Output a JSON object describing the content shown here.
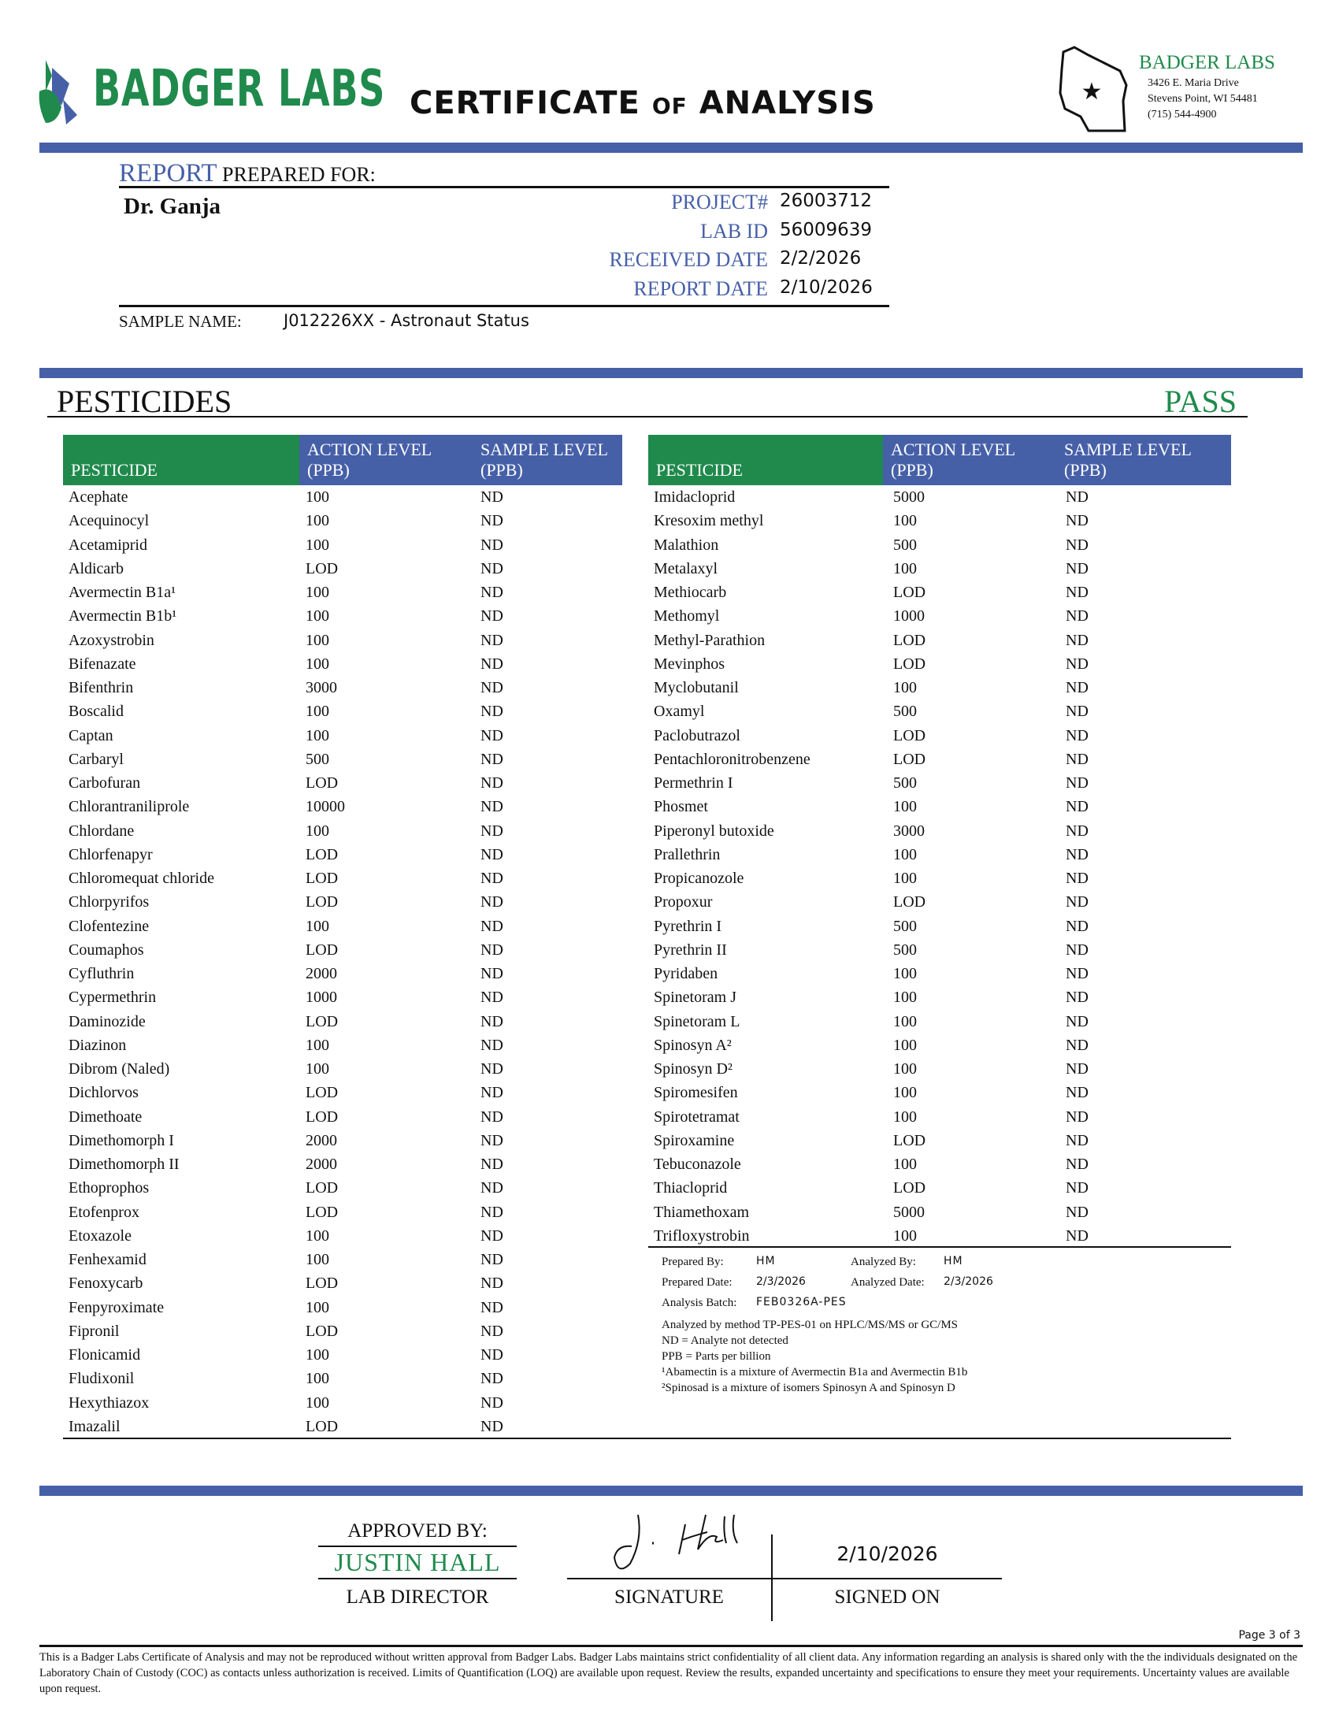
{
  "header": {
    "logo_text": "BADGER LABS",
    "title_part1": "CERTIFICATE",
    "title_of": "OF",
    "title_part2": "ANALYSIS",
    "lab_name": "BADGER LABS",
    "address1": "3426 E. Maria Drive",
    "address2": "Stevens Point, WI 54481",
    "phone": "(715) 544-4900"
  },
  "report": {
    "report_word": "REPORT",
    "prepared_for_label": "PREPARED FOR:",
    "client": "Dr. Ganja",
    "fields": [
      {
        "label": "PROJECT#",
        "value": "26003712"
      },
      {
        "label": "LAB ID",
        "value": "56009639"
      },
      {
        "label": "RECEIVED DATE",
        "value": "2/2/2026"
      },
      {
        "label": "REPORT DATE",
        "value": "2/10/2026"
      }
    ],
    "sample_name_label": "SAMPLE NAME:",
    "sample_name": "J012226XX - Astronaut Status"
  },
  "section": {
    "title": "PESTICIDES",
    "result": "PASS"
  },
  "table": {
    "headers": [
      "PESTICIDE",
      "ACTION LEVEL (PPB)",
      "SAMPLE LEVEL (PPB)"
    ],
    "left": [
      [
        "Acephate",
        "100",
        "ND"
      ],
      [
        "Acequinocyl",
        "100",
        "ND"
      ],
      [
        "Acetamiprid",
        "100",
        "ND"
      ],
      [
        "Aldicarb",
        "LOD",
        "ND"
      ],
      [
        "Avermectin B1a¹",
        "100",
        "ND"
      ],
      [
        "Avermectin B1b¹",
        "100",
        "ND"
      ],
      [
        "Azoxystrobin",
        "100",
        "ND"
      ],
      [
        "Bifenazate",
        "100",
        "ND"
      ],
      [
        "Bifenthrin",
        "3000",
        "ND"
      ],
      [
        "Boscalid",
        "100",
        "ND"
      ],
      [
        "Captan",
        "100",
        "ND"
      ],
      [
        "Carbaryl",
        "500",
        "ND"
      ],
      [
        "Carbofuran",
        "LOD",
        "ND"
      ],
      [
        "Chlorantraniliprole",
        "10000",
        "ND"
      ],
      [
        "Chlordane",
        "100",
        "ND"
      ],
      [
        "Chlorfenapyr",
        "LOD",
        "ND"
      ],
      [
        "Chloromequat chloride",
        "LOD",
        "ND"
      ],
      [
        "Chlorpyrifos",
        "LOD",
        "ND"
      ],
      [
        "Clofentezine",
        "100",
        "ND"
      ],
      [
        "Coumaphos",
        "LOD",
        "ND"
      ],
      [
        "Cyfluthrin",
        "2000",
        "ND"
      ],
      [
        "Cypermethrin",
        "1000",
        "ND"
      ],
      [
        "Daminozide",
        "LOD",
        "ND"
      ],
      [
        "Diazinon",
        "100",
        "ND"
      ],
      [
        "Dibrom (Naled)",
        "100",
        "ND"
      ],
      [
        "Dichlorvos",
        "LOD",
        "ND"
      ],
      [
        "Dimethoate",
        "LOD",
        "ND"
      ],
      [
        "Dimethomorph I",
        "2000",
        "ND"
      ],
      [
        "Dimethomorph II",
        "2000",
        "ND"
      ],
      [
        "Ethoprophos",
        "LOD",
        "ND"
      ],
      [
        "Etofenprox",
        "LOD",
        "ND"
      ],
      [
        "Etoxazole",
        "100",
        "ND"
      ],
      [
        "Fenhexamid",
        "100",
        "ND"
      ],
      [
        "Fenoxycarb",
        "LOD",
        "ND"
      ],
      [
        "Fenpyroximate",
        "100",
        "ND"
      ],
      [
        "Fipronil",
        "LOD",
        "ND"
      ],
      [
        "Flonicamid",
        "100",
        "ND"
      ],
      [
        "Fludixonil",
        "100",
        "ND"
      ],
      [
        "Hexythiazox",
        "100",
        "ND"
      ],
      [
        "Imazalil",
        "LOD",
        "ND"
      ]
    ],
    "right": [
      [
        "Imidacloprid",
        "5000",
        "ND"
      ],
      [
        "Kresoxim methyl",
        "100",
        "ND"
      ],
      [
        "Malathion",
        "500",
        "ND"
      ],
      [
        "Metalaxyl",
        "100",
        "ND"
      ],
      [
        "Methiocarb",
        "LOD",
        "ND"
      ],
      [
        "Methomyl",
        "1000",
        "ND"
      ],
      [
        "Methyl-Parathion",
        "LOD",
        "ND"
      ],
      [
        "Mevinphos",
        "LOD",
        "ND"
      ],
      [
        "Myclobutanil",
        "100",
        "ND"
      ],
      [
        "Oxamyl",
        "500",
        "ND"
      ],
      [
        "Paclobutrazol",
        "LOD",
        "ND"
      ],
      [
        "Pentachloronitrobenzene",
        "LOD",
        "ND"
      ],
      [
        "Permethrin I",
        "500",
        "ND"
      ],
      [
        "Phosmet",
        "100",
        "ND"
      ],
      [
        "Piperonyl butoxide",
        "3000",
        "ND"
      ],
      [
        "Prallethrin",
        "100",
        "ND"
      ],
      [
        "Propicanozole",
        "100",
        "ND"
      ],
      [
        "Propoxur",
        "LOD",
        "ND"
      ],
      [
        "Pyrethrin I",
        "500",
        "ND"
      ],
      [
        "Pyrethrin II",
        "500",
        "ND"
      ],
      [
        "Pyridaben",
        "100",
        "ND"
      ],
      [
        "Spinetoram J",
        "100",
        "ND"
      ],
      [
        "Spinetoram L",
        "100",
        "ND"
      ],
      [
        "Spinosyn A²",
        "100",
        "ND"
      ],
      [
        "Spinosyn D²",
        "100",
        "ND"
      ],
      [
        "Spiromesifen",
        "100",
        "ND"
      ],
      [
        "Spirotetramat",
        "100",
        "ND"
      ],
      [
        "Spiroxamine",
        "LOD",
        "ND"
      ],
      [
        "Tebuconazole",
        "100",
        "ND"
      ],
      [
        "Thiacloprid",
        "LOD",
        "ND"
      ],
      [
        "Thiamethoxam",
        "5000",
        "ND"
      ],
      [
        "Trifloxystrobin",
        "100",
        "ND"
      ]
    ]
  },
  "analysis": {
    "prepared_by_label": "Prepared By:",
    "prepared_by": "HM",
    "analyzed_by_label": "Analyzed By:",
    "analyzed_by": "HM",
    "prepared_date_label": "Prepared Date:",
    "prepared_date": "2/3/2026",
    "analyzed_date_label": "Analyzed Date:",
    "analyzed_date": "2/3/2026",
    "batch_label": "Analysis Batch:",
    "batch": "FEB0326A-PES",
    "notes": [
      "Analyzed by method TP-PES-01 on HPLC/MS/MS or GC/MS",
      "ND = Analyte not detected",
      "PPB = Parts per billion",
      "¹Abamectin is a mixture of Avermectin B1a and Avermectin B1b",
      "²Spinosad is a mixture of isomers Spinosyn A and Spinosyn D"
    ]
  },
  "approval": {
    "approved_by_label": "APPROVED BY:",
    "approver": "JUSTIN HALL",
    "role": "LAB DIRECTOR",
    "signature_label": "SIGNATURE",
    "signed_on": "2/10/2026",
    "signed_on_label": "SIGNED ON"
  },
  "footer": {
    "page": "Page 3 of 3",
    "disclaimer": "This is a Badger Labs Certificate of Analysis and may not be reproduced without written approval from Badger Labs. Badger Labs maintains strict confidentiality of all client data. Any information regarding an analysis is shared only with the the individuals designated on the Laboratory Chain of Custody (COC) as contacts unless authorization is received. Limits of Quantification (LOQ) are available upon request. Review the results, expanded uncertainty and specifications to ensure they meet your requirements. Uncertainty values are available upon request."
  },
  "colors": {
    "blue": "#4660a8",
    "green": "#1f8a4c"
  }
}
